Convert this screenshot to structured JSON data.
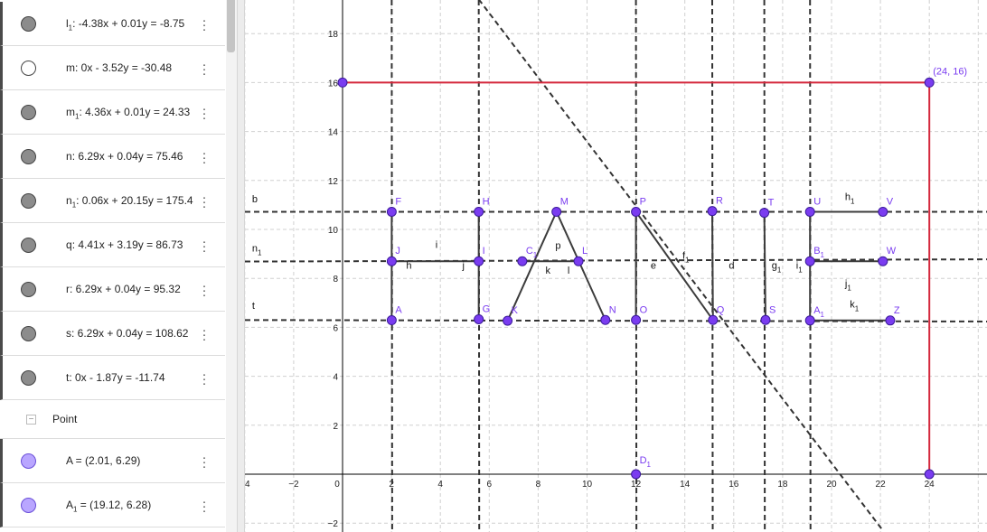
{
  "algebra": {
    "rows": [
      {
        "name": "l",
        "sub": "1",
        "rest": ": -4.38x + 0.01y = -8.75",
        "fill": "#8c8c8c"
      },
      {
        "name": "m",
        "sub": "",
        "rest": ": 0x - 3.52y = -30.48",
        "fill": "#ffffff"
      },
      {
        "name": "m",
        "sub": "1",
        "rest": ": 4.36x + 0.01y = 24.33",
        "fill": "#8c8c8c"
      },
      {
        "name": "n",
        "sub": "",
        "rest": ": 6.29x + 0.04y = 75.46",
        "fill": "#8c8c8c"
      },
      {
        "name": "n",
        "sub": "1",
        "rest": ": 0.06x + 20.15y = 175.4",
        "fill": "#8c8c8c"
      },
      {
        "name": "q",
        "sub": "",
        "rest": ": 4.41x + 3.19y = 86.73",
        "fill": "#8c8c8c"
      },
      {
        "name": "r",
        "sub": "",
        "rest": ": 6.29x + 0.04y = 95.32",
        "fill": "#8c8c8c"
      },
      {
        "name": "s",
        "sub": "",
        "rest": ": 6.29x + 0.04y = 108.62",
        "fill": "#8c8c8c"
      },
      {
        "name": "t",
        "sub": "",
        "rest": ": 0x - 1.87y = -11.74",
        "fill": "#8c8c8c"
      }
    ],
    "group": {
      "toggle": "−",
      "label": "Point"
    },
    "point_rows": [
      {
        "name": "A",
        "sub": "",
        "rest": " = (2.01, 6.29)",
        "fill": "#b9a6ff"
      },
      {
        "name": "A",
        "sub": "1",
        "rest": " = (19.12, 6.28)",
        "fill": "#b9a6ff"
      }
    ],
    "menu_glyph": "⋮"
  },
  "graph": {
    "colors": {
      "point": "#7a3cf0",
      "point_stroke": "#3a1a9a",
      "label": "#7a3cf0",
      "line": "#333333",
      "red": "#d4283c",
      "axis": "#000000",
      "grid": "#d0d0d0"
    },
    "x_ticks": [
      -4,
      -2,
      0,
      2,
      4,
      6,
      8,
      10,
      12,
      14,
      16,
      18,
      20,
      22,
      24
    ],
    "y_ticks": [
      -2,
      2,
      4,
      6,
      8,
      10,
      12,
      14,
      16,
      18
    ],
    "points": [
      {
        "n": "F",
        "s": "",
        "x": 2.01,
        "y": 10.72
      },
      {
        "n": "H",
        "s": "",
        "x": 5.57,
        "y": 10.72
      },
      {
        "n": "M",
        "s": "",
        "x": 8.75,
        "y": 10.72
      },
      {
        "n": "P",
        "s": "",
        "x": 12.0,
        "y": 10.72
      },
      {
        "n": "R",
        "s": "",
        "x": 15.12,
        "y": 10.75
      },
      {
        "n": "T",
        "s": "",
        "x": 17.25,
        "y": 10.68
      },
      {
        "n": "U",
        "s": "",
        "x": 19.12,
        "y": 10.72
      },
      {
        "n": "V",
        "s": "",
        "x": 22.1,
        "y": 10.72
      },
      {
        "n": "J",
        "s": "",
        "x": 2.01,
        "y": 8.7
      },
      {
        "n": "I",
        "s": "",
        "x": 5.57,
        "y": 8.7
      },
      {
        "n": "C",
        "s": "1",
        "x": 7.35,
        "y": 8.7
      },
      {
        "n": "L",
        "s": "",
        "x": 9.65,
        "y": 8.7
      },
      {
        "n": "B",
        "s": "1",
        "x": 19.12,
        "y": 8.7
      },
      {
        "n": "W",
        "s": "",
        "x": 22.1,
        "y": 8.7
      },
      {
        "n": "A",
        "s": "",
        "x": 2.01,
        "y": 6.29
      },
      {
        "n": "G",
        "s": "",
        "x": 5.57,
        "y": 6.33
      },
      {
        "n": "K",
        "s": "",
        "x": 6.75,
        "y": 6.27
      },
      {
        "n": "N",
        "s": "",
        "x": 10.75,
        "y": 6.3
      },
      {
        "n": "O",
        "s": "",
        "x": 12.0,
        "y": 6.3
      },
      {
        "n": "Q",
        "s": "",
        "x": 15.15,
        "y": 6.3
      },
      {
        "n": "S",
        "s": "",
        "x": 17.3,
        "y": 6.3
      },
      {
        "n": "A",
        "s": "1",
        "x": 19.12,
        "y": 6.28
      },
      {
        "n": "Z",
        "s": "",
        "x": 22.4,
        "y": 6.28
      },
      {
        "n": "D",
        "s": "1",
        "x": 12.0,
        "y": 0.0
      }
    ],
    "extra_points": [
      {
        "n": "",
        "x": 0.0,
        "y": 16.0
      },
      {
        "n": "(24, 16)",
        "x": 24.0,
        "y": 16.0
      },
      {
        "n": "",
        "x": 24.0,
        "y": 0.0
      }
    ],
    "line_labels": [
      {
        "t": "b",
        "s": "",
        "x": -3.7,
        "y": 11.1
      },
      {
        "t": "n",
        "s": "1",
        "x": -3.7,
        "y": 9.1
      },
      {
        "t": "t",
        "s": "",
        "x": -3.7,
        "y": 6.75
      },
      {
        "t": "i",
        "s": "",
        "x": 3.8,
        "y": 9.25
      },
      {
        "t": "h",
        "s": "",
        "x": 2.6,
        "y": 8.4
      },
      {
        "t": "j",
        "s": "",
        "x": 4.9,
        "y": 8.4
      },
      {
        "t": "p",
        "s": "",
        "x": 8.7,
        "y": 9.2
      },
      {
        "t": "k",
        "s": "",
        "x": 8.3,
        "y": 8.2
      },
      {
        "t": "l",
        "s": "",
        "x": 9.2,
        "y": 8.2
      },
      {
        "t": "e",
        "s": "",
        "x": 12.6,
        "y": 8.4
      },
      {
        "t": "f",
        "s": "1",
        "x": 13.9,
        "y": 8.8
      },
      {
        "t": "d",
        "s": "",
        "x": 15.8,
        "y": 8.4
      },
      {
        "t": "g",
        "s": "1",
        "x": 17.55,
        "y": 8.4
      },
      {
        "t": "i",
        "s": "1",
        "x": 18.55,
        "y": 8.4
      },
      {
        "t": "h",
        "s": "1",
        "x": 20.55,
        "y": 11.2
      },
      {
        "t": "j",
        "s": "1",
        "x": 20.55,
        "y": 7.65
      },
      {
        "t": "k",
        "s": "1",
        "x": 20.75,
        "y": 6.8
      }
    ]
  }
}
